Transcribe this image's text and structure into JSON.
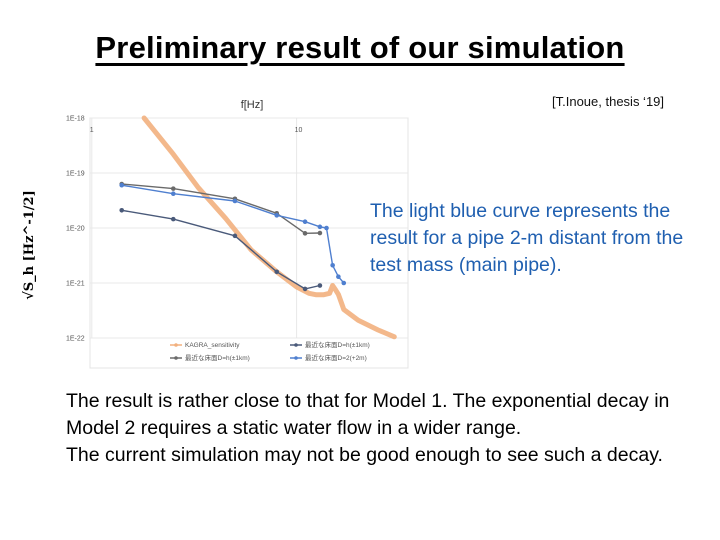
{
  "slide": {
    "title": "Preliminary result of our simulation",
    "citation": "[T.Inoue, thesis ‘19]"
  },
  "callout": {
    "text": "The light blue curve represents the result for a pipe 2-m distant from the test mass (main pipe)."
  },
  "body": {
    "paragraphs": [
      "The result is rather close to that for Model 1. The exponential decay in Model 2 requires a static water flow in a wider range.",
      "The current simulation may not be good enough to see such a decay."
    ]
  },
  "chart_data": {
    "type": "line",
    "xlabel": "f[Hz]",
    "ylabel": "√S_h [Hz^-1/2]",
    "xscale": "log",
    "yscale": "log",
    "xlim": [
      0.98,
      35
    ],
    "ylim": [
      1e-22,
      1e-18
    ],
    "xticks": [
      {
        "value": 1,
        "label": "1"
      },
      {
        "value": 10,
        "label": "10"
      }
    ],
    "yticks": [
      {
        "value": 1e-18,
        "label": "1E-18"
      },
      {
        "value": 1e-19,
        "label": "1E-19"
      },
      {
        "value": 1e-20,
        "label": "1E-20"
      },
      {
        "value": 1e-21,
        "label": "1E-21"
      },
      {
        "value": 1e-22,
        "label": "1E-22"
      }
    ],
    "grid": true,
    "legend_position": "bottom",
    "series": [
      {
        "name": "KAGRA_sensitivity",
        "color": "#f2b07e",
        "width": 5,
        "marker": false,
        "points": [
          [
            1.8,
            1e-18
          ],
          [
            2.5,
            2.2e-19
          ],
          [
            3.3,
            5.5e-20
          ],
          [
            4.5,
            1.5e-20
          ],
          [
            6,
            4e-21
          ],
          [
            8,
            1.6e-21
          ],
          [
            10,
            8.5e-22
          ],
          [
            11.5,
            6.5e-22
          ],
          [
            12.5,
            6.1e-22
          ],
          [
            13.5,
            6.1e-22
          ],
          [
            14.5,
            6.5e-22
          ],
          [
            15,
            9e-22
          ],
          [
            15.5,
            7.5e-22
          ],
          [
            16,
            6.2e-22
          ],
          [
            17,
            3.3e-22
          ],
          [
            20,
            2.1e-22
          ],
          [
            25,
            1.4e-22
          ],
          [
            30,
            1.05e-22
          ]
        ]
      },
      {
        "name": "最近な床面D=h(±1km)",
        "color": "#4a5a7a",
        "width": 1.4,
        "marker": true,
        "points": [
          [
            1.4,
            2.1e-20
          ],
          [
            2.5,
            1.45e-20
          ],
          [
            5,
            7.2e-21
          ],
          [
            8,
            1.6e-21
          ],
          [
            11,
            7.8e-22
          ],
          [
            13,
            9e-22
          ]
        ]
      },
      {
        "name": "最近な床面D=h(±1km)",
        "color": "#6a6a6a",
        "width": 1.4,
        "marker": true,
        "points": [
          [
            1.4,
            6.3e-20
          ],
          [
            2.5,
            5.2e-20
          ],
          [
            5,
            3.4e-20
          ],
          [
            8,
            1.85e-20
          ],
          [
            11,
            8e-21
          ],
          [
            13,
            8.1e-21
          ]
        ]
      },
      {
        "name": "最近な床面D=2(+2m)",
        "color": "#4f7fcf",
        "width": 1.4,
        "marker": true,
        "points": [
          [
            1.4,
            6e-20
          ],
          [
            2.5,
            4.2e-20
          ],
          [
            5,
            3.1e-20
          ],
          [
            8,
            1.7e-20
          ],
          [
            11,
            1.3e-20
          ],
          [
            13,
            1.05e-20
          ],
          [
            14,
            1e-20
          ],
          [
            15,
            2.1e-21
          ],
          [
            16,
            1.3e-21
          ],
          [
            17,
            1e-21
          ]
        ]
      }
    ]
  }
}
